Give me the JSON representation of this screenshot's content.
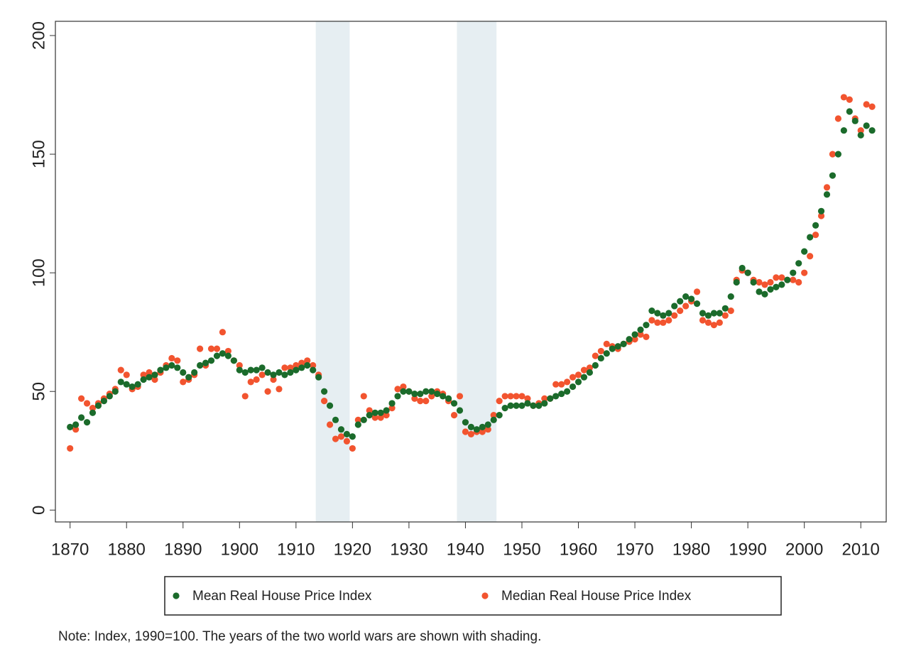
{
  "chart_data": {
    "type": "scatter",
    "x": [
      1870,
      1871,
      1872,
      1873,
      1874,
      1875,
      1876,
      1877,
      1878,
      1879,
      1880,
      1881,
      1882,
      1883,
      1884,
      1885,
      1886,
      1887,
      1888,
      1889,
      1890,
      1891,
      1892,
      1893,
      1894,
      1895,
      1896,
      1897,
      1898,
      1899,
      1900,
      1901,
      1902,
      1903,
      1904,
      1905,
      1906,
      1907,
      1908,
      1909,
      1910,
      1911,
      1912,
      1913,
      1914,
      1915,
      1916,
      1917,
      1918,
      1919,
      1920,
      1921,
      1922,
      1923,
      1924,
      1925,
      1926,
      1927,
      1928,
      1929,
      1930,
      1931,
      1932,
      1933,
      1934,
      1935,
      1936,
      1937,
      1938,
      1939,
      1940,
      1941,
      1942,
      1943,
      1944,
      1945,
      1946,
      1947,
      1948,
      1949,
      1950,
      1951,
      1952,
      1953,
      1954,
      1955,
      1956,
      1957,
      1958,
      1959,
      1960,
      1961,
      1962,
      1963,
      1964,
      1965,
      1966,
      1967,
      1968,
      1969,
      1970,
      1971,
      1972,
      1973,
      1974,
      1975,
      1976,
      1977,
      1978,
      1979,
      1980,
      1981,
      1982,
      1983,
      1984,
      1985,
      1986,
      1987,
      1988,
      1989,
      1990,
      1991,
      1992,
      1993,
      1994,
      1995,
      1996,
      1997,
      1998,
      1999,
      2000,
      2001,
      2002,
      2003,
      2004,
      2005,
      2006,
      2007,
      2008,
      2009,
      2010,
      2011,
      2012
    ],
    "series": [
      {
        "name": "Median Real House Price Index",
        "color": "#f2542f",
        "values": [
          26,
          34,
          47,
          45,
          43,
          45,
          47,
          49,
          51,
          59,
          57,
          51,
          52,
          57,
          58,
          55,
          58,
          61,
          64,
          63,
          54,
          55,
          57,
          68,
          61,
          68,
          68,
          75,
          67,
          63,
          61,
          48,
          54,
          55,
          57,
          50,
          55,
          51,
          60,
          60,
          61,
          62,
          63,
          61,
          57,
          46,
          36,
          30,
          31,
          29,
          26,
          38,
          48,
          42,
          39,
          39,
          40,
          43,
          51,
          52,
          50,
          47,
          46,
          46,
          48,
          50,
          49,
          46,
          40,
          48,
          33,
          32,
          33,
          33,
          34,
          40,
          46,
          48,
          48,
          48,
          48,
          47,
          44,
          45,
          47,
          47,
          53,
          53,
          54,
          56,
          57,
          59,
          60,
          65,
          67,
          70,
          69,
          68,
          70,
          71,
          72,
          74,
          73,
          80,
          79,
          79,
          80,
          82,
          84,
          86,
          88,
          92,
          80,
          79,
          78,
          79,
          82,
          84,
          97,
          101,
          100,
          97,
          96,
          95,
          96,
          98,
          98,
          97,
          97,
          96,
          100,
          107,
          116,
          124,
          136,
          150,
          165,
          174,
          173,
          165,
          160,
          171,
          170
        ]
      },
      {
        "name": "Mean Real House Price Index",
        "color": "#1b6b2b",
        "values": [
          35,
          36,
          39,
          37,
          41,
          44,
          46,
          48,
          50,
          54,
          53,
          52,
          53,
          55,
          56,
          57,
          59,
          60,
          61,
          60,
          58,
          56,
          58,
          61,
          62,
          63,
          65,
          66,
          65,
          63,
          59,
          58,
          59,
          59,
          60,
          58,
          57,
          58,
          57,
          58,
          59,
          60,
          61,
          59,
          56,
          50,
          44,
          38,
          34,
          32,
          31,
          36,
          38,
          40,
          41,
          41,
          42,
          45,
          48,
          50,
          50,
          49,
          49,
          50,
          50,
          49,
          48,
          47,
          45,
          42,
          37,
          35,
          34,
          35,
          36,
          38,
          40,
          43,
          44,
          44,
          44,
          45,
          44,
          44,
          45,
          47,
          48,
          49,
          50,
          52,
          54,
          56,
          58,
          61,
          64,
          66,
          68,
          69,
          70,
          72,
          74,
          76,
          78,
          84,
          83,
          82,
          83,
          86,
          88,
          90,
          89,
          87,
          83,
          82,
          83,
          83,
          85,
          90,
          96,
          102,
          100,
          96,
          92,
          91,
          93,
          94,
          95,
          97,
          100,
          104,
          109,
          115,
          120,
          126,
          133,
          141,
          150,
          160,
          168,
          164,
          158,
          162,
          160
        ]
      }
    ],
    "xlim": [
      1867.4,
      2014.5
    ],
    "ylim": [
      -5,
      206
    ],
    "xticks": [
      1870,
      1880,
      1890,
      1900,
      1910,
      1920,
      1930,
      1940,
      1950,
      1960,
      1970,
      1980,
      1990,
      2000,
      2010
    ],
    "yticks": [
      0,
      50,
      100,
      150,
      200
    ],
    "shaded_spans": [
      [
        1913.5,
        1919.5
      ],
      [
        1938.5,
        1945.5
      ]
    ],
    "note": "Note: Index, 1990=100. The years of the two world wars are shown with shading."
  }
}
